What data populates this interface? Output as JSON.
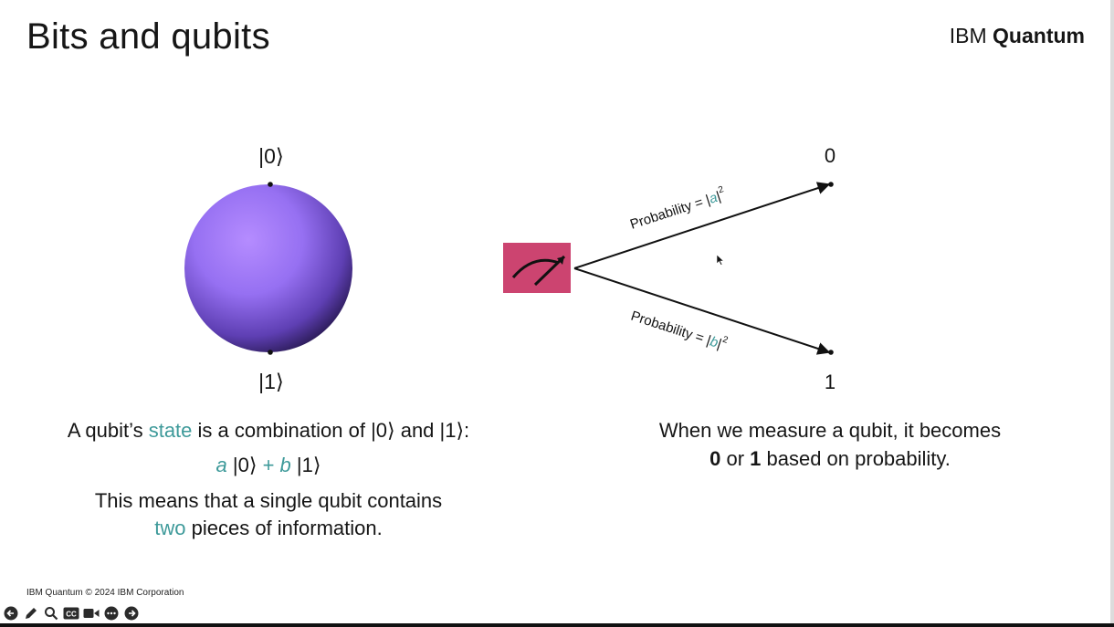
{
  "slide": {
    "title": "Bits and qubits",
    "brand": {
      "prefix": "IBM",
      "bold": "Quantum"
    },
    "footer": "IBM Quantum © 2024 IBM Corporation"
  },
  "sphere": {
    "top_label": "|0⟩",
    "bottom_label": "|1⟩",
    "color": "#9670f2"
  },
  "measurement": {
    "box_color": "#cc4470",
    "outcome_top": "0",
    "outcome_bottom": "1",
    "prob_top": {
      "text": "Probability = |",
      "var": "a",
      "end": "|",
      "exp": "2"
    },
    "prob_bottom": {
      "text": "Probability = |",
      "var": "b",
      "end": "|",
      "exp": "2"
    }
  },
  "left_caption": {
    "line1_a": "A qubit’s ",
    "line1_highlight": "state",
    "line1_b": " is a combination of |0⟩ and |1⟩:",
    "formula_a": "a",
    "formula_ket0": " |0⟩ ",
    "formula_plus": "+",
    "formula_b": " b",
    "formula_ket1": " |1⟩",
    "line3": "This means that a single qubit contains",
    "line4_highlight": "two",
    "line4_rest": " pieces of information."
  },
  "right_caption": {
    "line1": "When we measure a qubit, it becomes",
    "bold0": "0",
    "mid": " or ",
    "bold1": "1",
    "rest": " based on probability."
  },
  "accent_teal": "#3e9a9a",
  "toolbar": {
    "icons": [
      "previous-icon",
      "pen-icon",
      "zoom-icon",
      "captions-icon",
      "video-icon",
      "more-icon",
      "next-icon"
    ],
    "cc_label": "CC"
  }
}
